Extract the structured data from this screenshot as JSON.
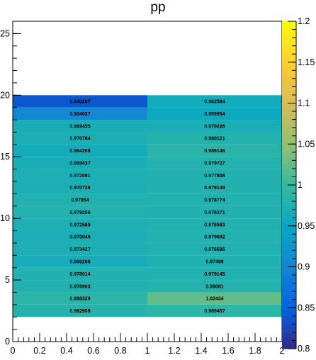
{
  "title_fragment": "pp",
  "chart_data": {
    "type": "heatmap",
    "x_bin_edges": [
      0,
      1,
      2
    ],
    "y_bin_edges": [
      2,
      3,
      4,
      5,
      6,
      7,
      8,
      9,
      10,
      11,
      12,
      13,
      14,
      15,
      16,
      17,
      18,
      19,
      20
    ],
    "xlim": [
      0,
      2
    ],
    "ylim": [
      0,
      26
    ],
    "x_ticks": [
      "0",
      "0.2",
      "0.4",
      "0.6",
      "0.8",
      "1",
      "1.2",
      "1.4",
      "1.6",
      "1.8",
      "2"
    ],
    "y_ticks": [
      "0",
      "5",
      "10",
      "15",
      "20",
      "25"
    ],
    "z_range": [
      0.8,
      1.2
    ],
    "z_ticks": [
      "0.8",
      "0.85",
      "0.9",
      "0.95",
      "1",
      "1.05",
      "1.1",
      "1.15",
      "1.2"
    ],
    "cells": [
      [
        "0.982908",
        "0.989457"
      ],
      [
        "0.988329",
        "1.02434"
      ],
      [
        "0.978903",
        "0.98081"
      ],
      [
        "0.978014",
        "0.979145"
      ],
      [
        "0.966268",
        "0.97499"
      ],
      [
        "0.973427",
        "0.976686"
      ],
      [
        "0.970045",
        "0.979692"
      ],
      [
        "0.972589",
        "0.978583"
      ],
      [
        "0.979256",
        "0.978371"
      ],
      [
        "0.97854",
        "0.978774"
      ],
      [
        "0.970726",
        "0.979149"
      ],
      [
        "0.972081",
        "0.977808"
      ],
      [
        "0.969437",
        "0.979727"
      ],
      [
        "0.964208",
        "0.986146"
      ],
      [
        "0.970764",
        "0.980121"
      ],
      [
        "0.969455",
        "0.970226"
      ],
      [
        "0.904027",
        "0.955954"
      ],
      [
        "0.840267",
        "0.962584"
      ]
    ],
    "palette": [
      "#352a87",
      "#0363e1",
      "#1485d4",
      "#06a7c6",
      "#38b99e",
      "#92bf73",
      "#d9ba56",
      "#fcce2e",
      "#f9fb0e"
    ]
  }
}
